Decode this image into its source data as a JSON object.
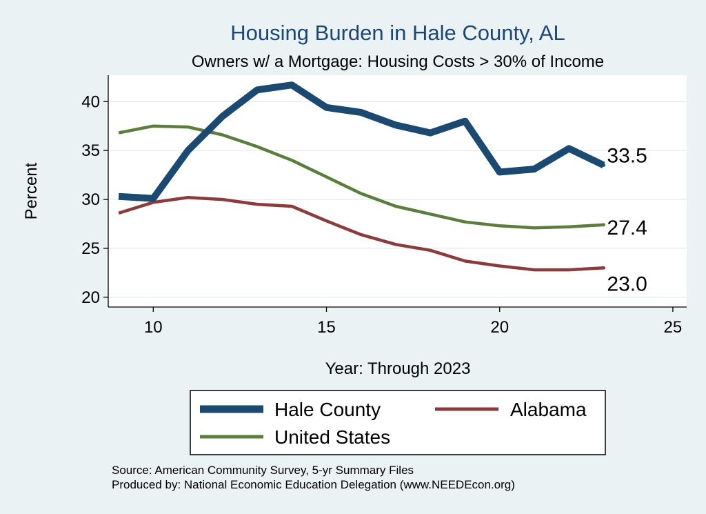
{
  "chart_data": {
    "type": "line",
    "title": "Housing Burden in Hale County, AL",
    "subtitle": "Owners w/ a Mortgage: Housing Costs > 30% of Income",
    "xlabel": "Year: Through 2023",
    "ylabel": "Percent",
    "xlim": [
      8.7,
      25.4
    ],
    "ylim": [
      19.0,
      42.7
    ],
    "xticks": [
      10,
      15,
      20,
      25
    ],
    "yticks": [
      20,
      25,
      30,
      35,
      40
    ],
    "grid": true,
    "legend_position": "bottom",
    "x": [
      9,
      10,
      11,
      12,
      13,
      14,
      15,
      16,
      17,
      18,
      19,
      20,
      21,
      22,
      23
    ],
    "series": [
      {
        "name": "Hale County",
        "color": "#1a4a72",
        "values": [
          30.3,
          30.1,
          35.0,
          38.5,
          41.2,
          41.7,
          39.4,
          38.9,
          37.6,
          36.8,
          38.0,
          32.8,
          33.1,
          35.2,
          33.5
        ],
        "end_label": "33.5"
      },
      {
        "name": "United States",
        "color": "#5a7f3a",
        "values": [
          36.8,
          37.5,
          37.4,
          36.6,
          35.4,
          34.0,
          32.3,
          30.6,
          29.3,
          28.5,
          27.7,
          27.3,
          27.1,
          27.2,
          27.4
        ],
        "end_label": "27.4"
      },
      {
        "name": "Alabama",
        "color": "#8f3a3a",
        "values": [
          28.6,
          29.7,
          30.2,
          30.0,
          29.5,
          29.3,
          27.8,
          26.4,
          25.4,
          24.8,
          23.7,
          23.2,
          22.8,
          22.8,
          23.0
        ],
        "end_label": "23.0"
      }
    ],
    "source_lines": [
      "Source: American Community Survey, 5-yr Summary Files",
      "Produced by: National Economic Education Delegation (www.NEEDEcon.org)"
    ]
  }
}
